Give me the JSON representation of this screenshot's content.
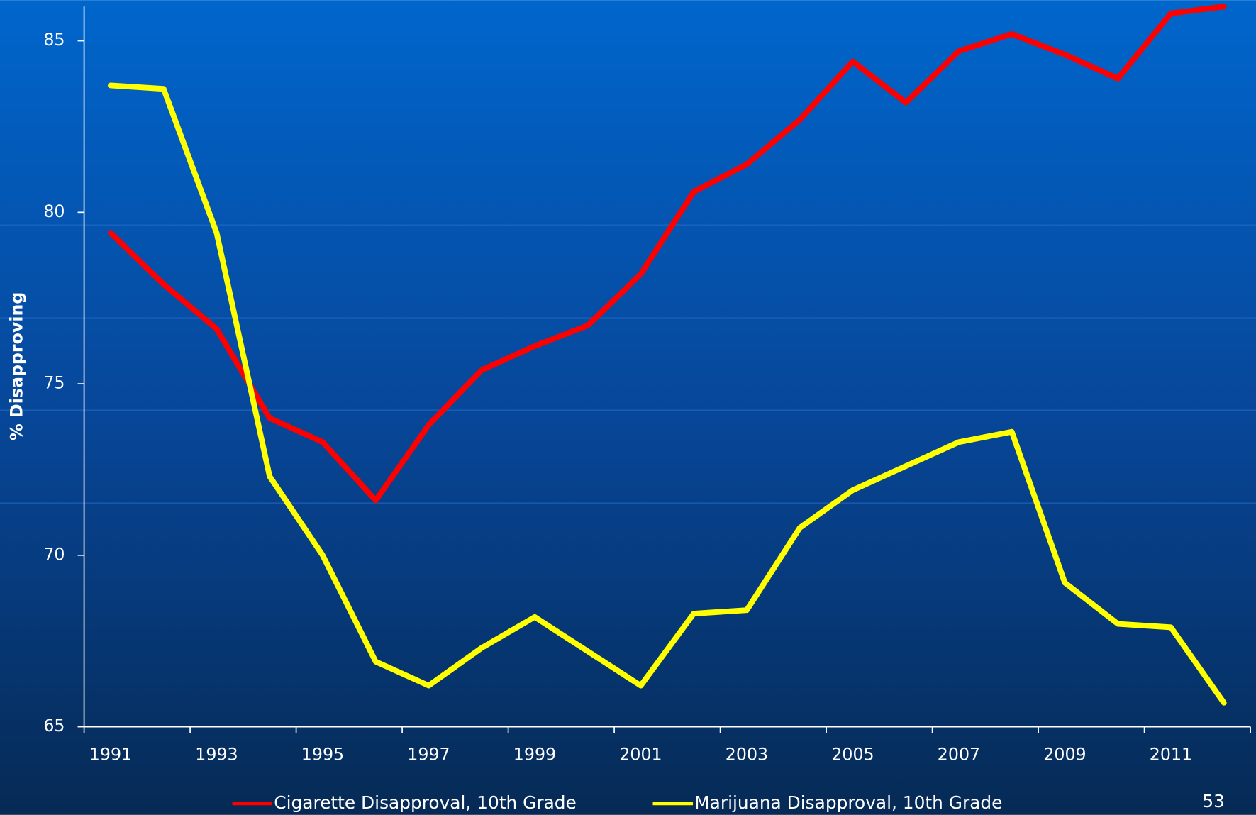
{
  "chart_data": {
    "type": "line",
    "y_axis_label": "% Disapproving",
    "categories": [
      "1991",
      null,
      "1993",
      null,
      "1995",
      null,
      "1997",
      null,
      "1999",
      null,
      "2001",
      null,
      "2003",
      null,
      "2005",
      null,
      "2007",
      null,
      "2009",
      null,
      "2011",
      null
    ],
    "series": [
      {
        "name": "Cigarette Disapproval, 10th Grade",
        "color": "#ff0000",
        "values": [
          79.4,
          77.9,
          76.6,
          74.0,
          73.3,
          71.6,
          73.8,
          75.4,
          76.1,
          76.7,
          78.2,
          80.6,
          81.4,
          82.7,
          84.4,
          83.2,
          84.7,
          85.2,
          84.6,
          83.9,
          85.8,
          86.0
        ]
      },
      {
        "name": "Marijuana Disapproval, 10th Grade",
        "color": "#ffff00",
        "values": [
          83.7,
          83.6,
          79.4,
          72.3,
          70.0,
          66.9,
          66.2,
          67.3,
          68.2,
          67.2,
          66.2,
          68.3,
          68.4,
          70.8,
          71.9,
          72.6,
          73.3,
          73.6,
          69.2,
          68.0,
          67.9,
          65.7
        ]
      }
    ],
    "ylim": [
      65,
      86
    ],
    "yticks": [
      65,
      70,
      75,
      80,
      85
    ],
    "legend": "bottom"
  },
  "page_number": "53"
}
